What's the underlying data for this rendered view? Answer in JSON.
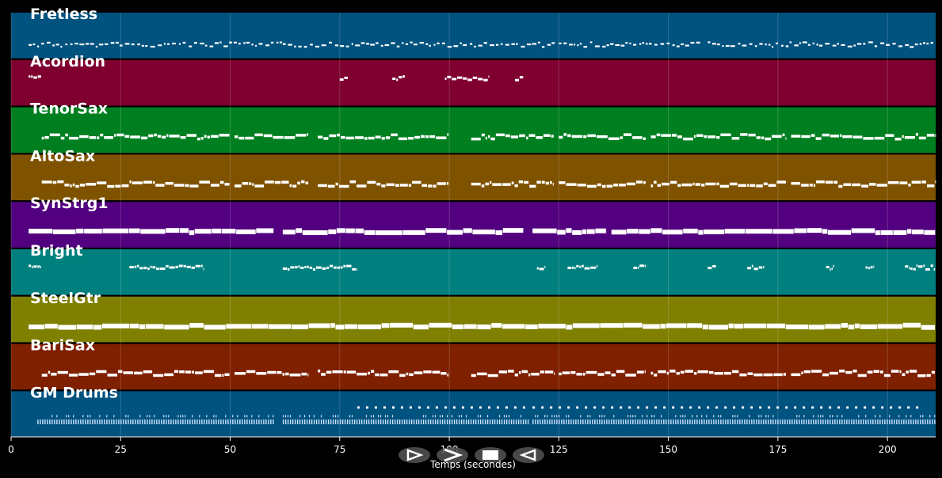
{
  "chart_data": {
    "type": "piano-roll",
    "xlabel": "Temps (secondes)",
    "xlim": [
      0,
      211
    ],
    "xticks": [
      0,
      25,
      50,
      75,
      100,
      125,
      150,
      175,
      200
    ],
    "tracks": [
      {
        "name": "Fretless",
        "color": "#00527f",
        "segments": [
          [
            4,
            62
          ],
          [
            62,
            124
          ],
          [
            125,
            157
          ],
          [
            159,
            211
          ]
        ],
        "density": "sparse-dots"
      },
      {
        "name": "Acordion",
        "color": "#7f002e",
        "segments": [
          [
            4,
            7
          ],
          [
            75,
            77
          ],
          [
            87,
            90
          ],
          [
            99,
            109
          ],
          [
            115,
            117
          ]
        ],
        "density": "phrases"
      },
      {
        "name": "TenorSax",
        "color": "#007f20",
        "segments": [
          [
            7,
            50
          ],
          [
            51,
            68
          ],
          [
            70,
            100
          ],
          [
            105,
            124
          ],
          [
            125,
            145
          ],
          [
            146,
            177
          ],
          [
            178,
            211
          ]
        ],
        "density": "line"
      },
      {
        "name": "AltoSax",
        "color": "#7f5200",
        "segments": [
          [
            7,
            50
          ],
          [
            51,
            68
          ],
          [
            70,
            100
          ],
          [
            105,
            124
          ],
          [
            125,
            145
          ],
          [
            146,
            177
          ],
          [
            178,
            211
          ]
        ],
        "density": "line"
      },
      {
        "name": "SynStrg1",
        "color": "#52007f",
        "segments": [
          [
            4,
            60
          ],
          [
            62,
            117
          ],
          [
            119,
            136
          ],
          [
            137,
            211
          ]
        ],
        "density": "thick"
      },
      {
        "name": "Bright",
        "color": "#007f7f",
        "segments": [
          [
            4,
            7
          ],
          [
            27,
            44
          ],
          [
            62,
            79
          ],
          [
            120,
            122
          ],
          [
            127,
            134
          ],
          [
            142,
            145
          ],
          [
            159,
            161
          ],
          [
            168,
            172
          ],
          [
            186,
            188
          ],
          [
            195,
            197
          ],
          [
            204,
            211
          ]
        ],
        "density": "phrases"
      },
      {
        "name": "SteelGtr",
        "color": "#7f7f00",
        "segments": [
          [
            4,
            211
          ]
        ],
        "density": "thick"
      },
      {
        "name": "BariSax",
        "color": "#7f2000",
        "segments": [
          [
            7,
            50
          ],
          [
            51,
            68
          ],
          [
            70,
            100
          ],
          [
            105,
            124
          ],
          [
            125,
            145
          ],
          [
            146,
            177
          ],
          [
            178,
            211
          ]
        ],
        "density": "line"
      },
      {
        "name": "GM Drums",
        "color": "#00527f",
        "segments": [
          [
            6,
            60
          ],
          [
            62,
            118
          ],
          [
            119,
            211
          ]
        ],
        "density": "drums"
      }
    ]
  },
  "transport": [
    {
      "name": "play-outline",
      "glyph": "play-outline-icon"
    },
    {
      "name": "play",
      "glyph": "play-icon"
    },
    {
      "name": "stop",
      "glyph": "stop-icon"
    },
    {
      "name": "rewind",
      "glyph": "rewind-icon"
    }
  ]
}
